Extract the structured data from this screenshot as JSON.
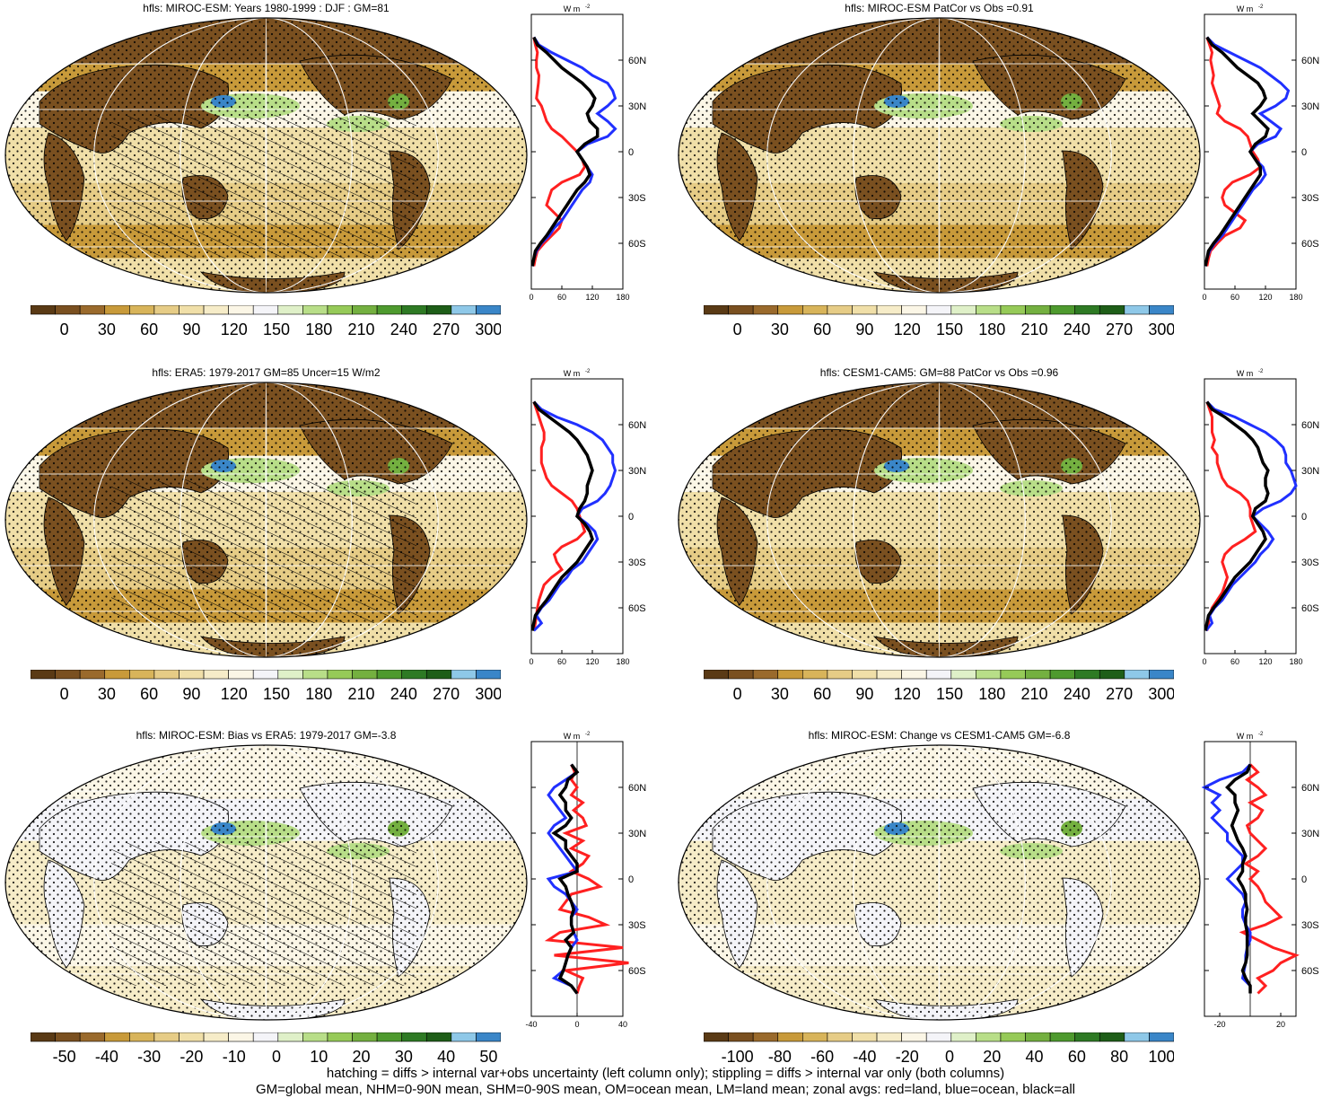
{
  "palettes": {
    "sequential": [
      "#5a3a15",
      "#7a5020",
      "#9a6a2c",
      "#c89a3a",
      "#d8b45a",
      "#e6cc86",
      "#f0dfa8",
      "#f6ecc8",
      "#fbf6e6",
      "#f4f4f8",
      "#dff0c8",
      "#b8de88",
      "#96ca58",
      "#74b040",
      "#4e9a2e",
      "#2e7a24",
      "#1e5e18",
      "#8ec8e8",
      "#3a86c8"
    ],
    "diverging": [
      "#5a3a15",
      "#7a5020",
      "#9a6a2c",
      "#c89a3a",
      "#d8b45a",
      "#e6cc86",
      "#f0dfa8",
      "#f6ecc8",
      "#fbf6e6",
      "#f4f4f8",
      "#dff0c8",
      "#b8de88",
      "#96ca58",
      "#74b040",
      "#4e9a2e",
      "#2e7a24",
      "#1e5e18",
      "#8ec8e8",
      "#3a86c8"
    ]
  },
  "colors": {
    "land": "#ff2020",
    "ocean": "#2030ff",
    "all": "#000000"
  },
  "unit_label": "W m",
  "unit_sup": "-2",
  "lat_labels": [
    "60N",
    "30N",
    "0",
    "30S",
    "60S"
  ],
  "panels": [
    {
      "id": "p1",
      "title": "hfls: MIROC-ESM: Years 1980-1999 : DJF : GM=81",
      "hatch": true,
      "cbar_labels": [
        "0",
        "30",
        "60",
        "90",
        "120",
        "150",
        "180",
        "210",
        "240",
        "270",
        "300"
      ],
      "palette": "sequential",
      "zonal_ticks": [
        "0",
        "60",
        "120",
        "180"
      ],
      "chart_data": {
        "type": "line",
        "x_range": [
          0,
          180
        ],
        "lat": [
          75,
          70,
          65,
          60,
          55,
          50,
          45,
          40,
          35,
          30,
          25,
          20,
          15,
          10,
          5,
          0,
          -5,
          -10,
          -15,
          -20,
          -25,
          -30,
          -35,
          -40,
          -45,
          -50,
          -55,
          -60,
          -65,
          -70,
          -75
        ],
        "series": [
          {
            "name": "red=land",
            "color": "land",
            "values": [
              5,
              8,
              12,
              10,
              10,
              15,
              14,
              12,
              10,
              20,
              25,
              30,
              40,
              60,
              75,
              90,
              100,
              105,
              95,
              60,
              40,
              35,
              30,
              45,
              60,
              55,
              40,
              25,
              12,
              8,
              5
            ]
          },
          {
            "name": "blue=ocean",
            "color": "ocean",
            "values": [
              5,
              15,
              40,
              70,
              100,
              120,
              150,
              160,
              165,
              150,
              130,
              150,
              165,
              150,
              110,
              90,
              100,
              110,
              120,
              115,
              100,
              90,
              80,
              70,
              60,
              45,
              35,
              20,
              10,
              5,
              2
            ]
          },
          {
            "name": "black=all",
            "color": "all",
            "values": [
              5,
              12,
              30,
              45,
              60,
              80,
              100,
              115,
              125,
              120,
              110,
              115,
              130,
              130,
              105,
              90,
              100,
              110,
              115,
              105,
              90,
              80,
              70,
              60,
              50,
              40,
              30,
              18,
              8,
              5,
              2
            ]
          }
        ]
      }
    },
    {
      "id": "p2",
      "title": "hfls: MIROC-ESM PatCor vs Obs =0.91",
      "hatch": false,
      "cbar_labels": [
        "0",
        "30",
        "60",
        "90",
        "120",
        "150",
        "180",
        "210",
        "240",
        "270",
        "300"
      ],
      "palette": "sequential",
      "zonal_ticks": [
        "0",
        "60",
        "120",
        "180"
      ],
      "chart_data": {
        "type": "line",
        "x_range": [
          0,
          180
        ],
        "lat": [
          75,
          70,
          65,
          60,
          55,
          50,
          45,
          40,
          35,
          30,
          25,
          20,
          15,
          10,
          5,
          0,
          -5,
          -10,
          -15,
          -20,
          -25,
          -30,
          -35,
          -40,
          -45,
          -50,
          -55,
          -60,
          -65,
          -70,
          -75
        ],
        "series": [
          {
            "name": "red=land",
            "color": "land",
            "values": [
              5,
              10,
              15,
              12,
              15,
              18,
              15,
              20,
              25,
              30,
              25,
              40,
              70,
              85,
              90,
              95,
              105,
              110,
              90,
              55,
              40,
              35,
              40,
              60,
              80,
              70,
              40,
              25,
              12,
              8,
              5
            ]
          },
          {
            "name": "blue=ocean",
            "color": "ocean",
            "values": [
              5,
              20,
              50,
              80,
              110,
              130,
              150,
              165,
              160,
              140,
              110,
              130,
              150,
              140,
              105,
              90,
              100,
              115,
              120,
              110,
              95,
              85,
              75,
              65,
              55,
              45,
              35,
              20,
              10,
              5,
              2
            ]
          },
          {
            "name": "black=all",
            "color": "all",
            "values": [
              5,
              15,
              35,
              50,
              65,
              85,
              105,
              115,
              120,
              110,
              95,
              110,
              125,
              120,
              100,
              90,
              100,
              110,
              110,
              100,
              90,
              80,
              70,
              60,
              50,
              40,
              30,
              18,
              8,
              5,
              2
            ]
          }
        ]
      }
    },
    {
      "id": "p3",
      "title": "hfls: ERA5: 1979-2017 GM=85 Uncer=15 W/m2",
      "hatch": true,
      "cbar_labels": [
        "0",
        "30",
        "60",
        "90",
        "120",
        "150",
        "180",
        "210",
        "240",
        "270",
        "300"
      ],
      "palette": "sequential",
      "zonal_ticks": [
        "0",
        "60",
        "120",
        "180"
      ],
      "chart_data": {
        "type": "line",
        "x_range": [
          0,
          180
        ],
        "lat": [
          75,
          70,
          65,
          60,
          55,
          50,
          45,
          40,
          35,
          30,
          25,
          20,
          15,
          10,
          5,
          0,
          -5,
          -10,
          -15,
          -20,
          -25,
          -30,
          -35,
          -40,
          -45,
          -50,
          -55,
          -60,
          -65,
          -70,
          -75
        ],
        "series": [
          {
            "name": "red=land",
            "color": "land",
            "values": [
              5,
              10,
              15,
              20,
              25,
              25,
              20,
              20,
              20,
              25,
              30,
              40,
              60,
              80,
              90,
              95,
              100,
              105,
              90,
              60,
              45,
              50,
              60,
              40,
              25,
              20,
              15,
              12,
              10,
              8,
              5
            ]
          },
          {
            "name": "blue=ocean",
            "color": "ocean",
            "values": [
              5,
              20,
              50,
              90,
              120,
              140,
              150,
              160,
              160,
              165,
              160,
              155,
              145,
              130,
              100,
              90,
              110,
              125,
              130,
              120,
              110,
              100,
              80,
              70,
              55,
              45,
              35,
              20,
              10,
              20,
              5
            ]
          },
          {
            "name": "black=all",
            "color": "all",
            "values": [
              5,
              15,
              35,
              55,
              75,
              90,
              100,
              110,
              115,
              120,
              115,
              110,
              110,
              105,
              95,
              90,
              105,
              115,
              120,
              110,
              100,
              90,
              75,
              60,
              50,
              40,
              30,
              18,
              8,
              5,
              2
            ]
          }
        ]
      }
    },
    {
      "id": "p4",
      "title": "hfls: CESM1-CAM5: GM=88 PatCor vs Obs =0.96",
      "hatch": false,
      "cbar_labels": [
        "0",
        "30",
        "60",
        "90",
        "120",
        "150",
        "180",
        "210",
        "240",
        "270",
        "300"
      ],
      "palette": "sequential",
      "zonal_ticks": [
        "0",
        "60",
        "120",
        "180"
      ],
      "chart_data": {
        "type": "line",
        "x_range": [
          0,
          180
        ],
        "lat": [
          75,
          70,
          65,
          60,
          55,
          50,
          45,
          40,
          35,
          30,
          25,
          20,
          15,
          10,
          5,
          0,
          -5,
          -10,
          -15,
          -20,
          -25,
          -30,
          -35,
          -40,
          -45,
          -50,
          -55,
          -60,
          -65,
          -70,
          -75
        ],
        "series": [
          {
            "name": "red=land",
            "color": "land",
            "values": [
              5,
              10,
              15,
              15,
              15,
              20,
              15,
              25,
              25,
              30,
              35,
              45,
              70,
              85,
              90,
              90,
              95,
              100,
              80,
              55,
              40,
              35,
              40,
              45,
              40,
              35,
              25,
              15,
              10,
              8,
              5
            ]
          },
          {
            "name": "blue=ocean",
            "color": "ocean",
            "values": [
              5,
              20,
              60,
              90,
              120,
              140,
              155,
              160,
              160,
              170,
              175,
              180,
              170,
              150,
              115,
              95,
              110,
              125,
              135,
              125,
              110,
              100,
              85,
              70,
              55,
              45,
              35,
              20,
              10,
              15,
              3
            ]
          },
          {
            "name": "black=all",
            "color": "all",
            "values": [
              5,
              15,
              40,
              60,
              80,
              95,
              105,
              110,
              115,
              125,
              120,
              120,
              125,
              120,
              100,
              95,
              105,
              115,
              120,
              110,
              100,
              90,
              75,
              60,
              50,
              40,
              30,
              18,
              8,
              5,
              2
            ]
          }
        ]
      }
    },
    {
      "id": "p5",
      "title": "hfls: MIROC-ESM: Bias vs ERA5: 1979-2017 GM=-3.8",
      "hatch": true,
      "cbar_labels": [
        "-50",
        "-40",
        "-30",
        "-20",
        "-10",
        "0",
        "10",
        "20",
        "30",
        "40",
        "50"
      ],
      "palette": "diverging",
      "zonal_ticks": [
        "-40",
        "0",
        "40"
      ],
      "chart_data": {
        "type": "line",
        "x_range": [
          -40,
          40
        ],
        "lat": [
          75,
          70,
          65,
          60,
          55,
          50,
          45,
          40,
          35,
          30,
          25,
          20,
          15,
          10,
          5,
          0,
          -5,
          -10,
          -15,
          -20,
          -25,
          -30,
          -35,
          -40,
          -45,
          -50,
          -55,
          -60,
          -65,
          -70,
          -75
        ],
        "series": [
          {
            "name": "red=land",
            "color": "land",
            "values": [
              -5,
              -2,
              -5,
              0,
              -5,
              5,
              -3,
              5,
              8,
              -10,
              5,
              -5,
              10,
              5,
              -5,
              10,
              20,
              -5,
              -10,
              -15,
              10,
              25,
              -15,
              -25,
              40,
              -20,
              45,
              -10,
              5,
              2,
              0
            ]
          },
          {
            "name": "blue=ocean",
            "color": "ocean",
            "values": [
              -5,
              0,
              -10,
              -20,
              -25,
              -20,
              -15,
              -10,
              -20,
              -25,
              -20,
              -15,
              -10,
              -5,
              0,
              -25,
              -20,
              -10,
              -5,
              0,
              -5,
              -5,
              -3,
              0,
              -5,
              -8,
              -10,
              -12,
              -20,
              -5,
              0
            ]
          },
          {
            "name": "black=all",
            "color": "all",
            "values": [
              -5,
              0,
              -8,
              -10,
              -15,
              -10,
              -10,
              -5,
              -10,
              -20,
              -10,
              -10,
              -5,
              0,
              0,
              -15,
              -10,
              -8,
              -5,
              -3,
              -5,
              -5,
              -3,
              -10,
              -5,
              -8,
              -10,
              -12,
              -15,
              -5,
              0
            ]
          }
        ]
      }
    },
    {
      "id": "p6",
      "title": "hfls: MIROC-ESM: Change vs CESM1-CAM5 GM=-6.8",
      "hatch": false,
      "cbar_labels": [
        "-100",
        "-80",
        "-60",
        "-40",
        "-20",
        "0",
        "20",
        "40",
        "60",
        "80",
        "100"
      ],
      "palette": "diverging",
      "zonal_ticks": [
        "-20",
        "20"
      ],
      "chart_data": {
        "type": "line",
        "x_range": [
          -30,
          30
        ],
        "lat": [
          75,
          70,
          65,
          60,
          55,
          50,
          45,
          40,
          35,
          30,
          25,
          20,
          15,
          10,
          5,
          0,
          -5,
          -10,
          -15,
          -20,
          -25,
          -30,
          -35,
          -40,
          -45,
          -50,
          -55,
          -60,
          -65,
          -70,
          -75
        ],
        "series": [
          {
            "name": "red=land",
            "color": "land",
            "values": [
              0,
              5,
              -2,
              5,
              10,
              0,
              8,
              5,
              -2,
              0,
              5,
              10,
              5,
              -3,
              5,
              0,
              5,
              8,
              10,
              15,
              20,
              10,
              -5,
              5,
              15,
              30,
              20,
              15,
              5,
              10,
              5
            ]
          },
          {
            "name": "blue=ocean",
            "color": "ocean",
            "values": [
              0,
              -5,
              -20,
              -30,
              -20,
              -25,
              -20,
              -25,
              -20,
              -15,
              -15,
              -10,
              -5,
              -5,
              -10,
              -15,
              -10,
              -5,
              -3,
              -5,
              -5,
              -3,
              0,
              0,
              -2,
              -3,
              -3,
              -4,
              -5,
              0,
              0
            ]
          },
          {
            "name": "black=all",
            "color": "all",
            "values": [
              0,
              -2,
              -10,
              -15,
              -10,
              -10,
              -8,
              -10,
              -12,
              -10,
              -8,
              -5,
              -3,
              -5,
              -5,
              -8,
              -5,
              -3,
              -3,
              -2,
              -3,
              -3,
              -2,
              -2,
              -2,
              -2,
              -3,
              -5,
              -3,
              0,
              0
            ]
          }
        ]
      }
    }
  ],
  "footer": {
    "line1": "hatching = diffs > internal var+obs uncertainty (left column only); stippling = diffs > internal var only (both columns)",
    "line2": "GM=global mean, NHM=0-90N mean, SHM=0-90S mean, OM=ocean mean, LM=land mean; zonal avgs: red=land, blue=ocean, black=all"
  }
}
